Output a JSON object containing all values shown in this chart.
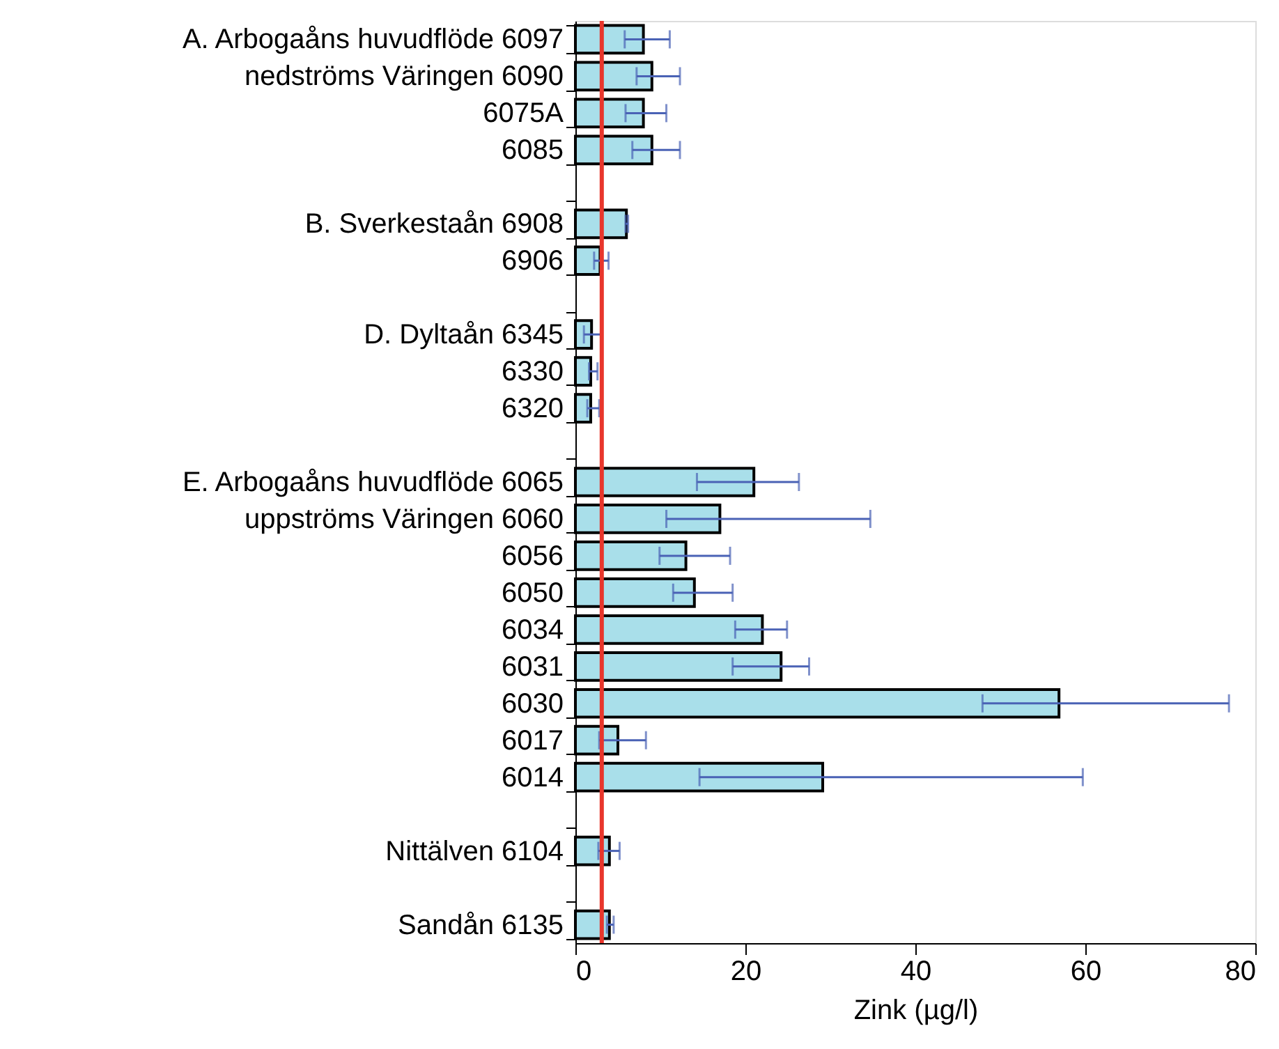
{
  "chart_data": {
    "type": "bar",
    "orientation": "horizontal",
    "xlabel": "Zink (µg/l)",
    "categories": [
      "A. Arbogaåns huvudflöde 6097",
      "nedströms Väringen 6090",
      "6075A",
      "6085",
      null,
      "B. Sverkestaån 6908",
      "6906",
      null,
      "D. Dyltaån 6345",
      "6330",
      "6320",
      null,
      "E. Arbogaåns huvudflöde 6065",
      "uppströms Väringen 6060",
      "6056",
      "6050",
      "6034",
      "6031",
      "6030",
      "6017",
      "6014",
      null,
      "Nittälven 6104",
      null,
      "Sandån 6135"
    ],
    "series": [
      {
        "color": "#a9dfea",
        "values": [
          8.0,
          9.0,
          8.0,
          9.0,
          null,
          6.0,
          2.9,
          null,
          1.9,
          1.8,
          1.8,
          null,
          21.0,
          17.0,
          13.0,
          14.0,
          22.0,
          24.2,
          56.9,
          5.0,
          29.1,
          null,
          4.0,
          null,
          4.0
        ],
        "errors": [
          [
            5.8,
            11.1
          ],
          [
            7.2,
            12.3
          ],
          [
            5.9,
            10.7
          ],
          [
            6.7,
            12.3
          ],
          null,
          [
            5.9,
            6.2
          ],
          [
            2.2,
            3.9
          ],
          null,
          [
            1.0,
            3.0
          ],
          [
            1.6,
            2.6
          ],
          [
            1.4,
            2.8
          ],
          null,
          [
            14.3,
            26.3
          ],
          [
            10.7,
            34.7
          ],
          [
            9.9,
            18.2
          ],
          [
            11.5,
            18.5
          ],
          [
            18.8,
            24.9
          ],
          [
            18.5,
            27.5
          ],
          [
            47.9,
            76.9
          ],
          [
            2.8,
            8.3
          ],
          [
            14.6,
            59.7
          ],
          null,
          [
            2.7,
            5.2
          ],
          null,
          [
            3.7,
            4.5
          ]
        ]
      }
    ],
    "xlim": [
      0,
      80
    ],
    "xticks": [
      0,
      20,
      40,
      60,
      80
    ],
    "grid": false,
    "ref_lines": [
      {
        "axis": "x",
        "value": 3.1,
        "color": "#e8362c"
      }
    ]
  }
}
